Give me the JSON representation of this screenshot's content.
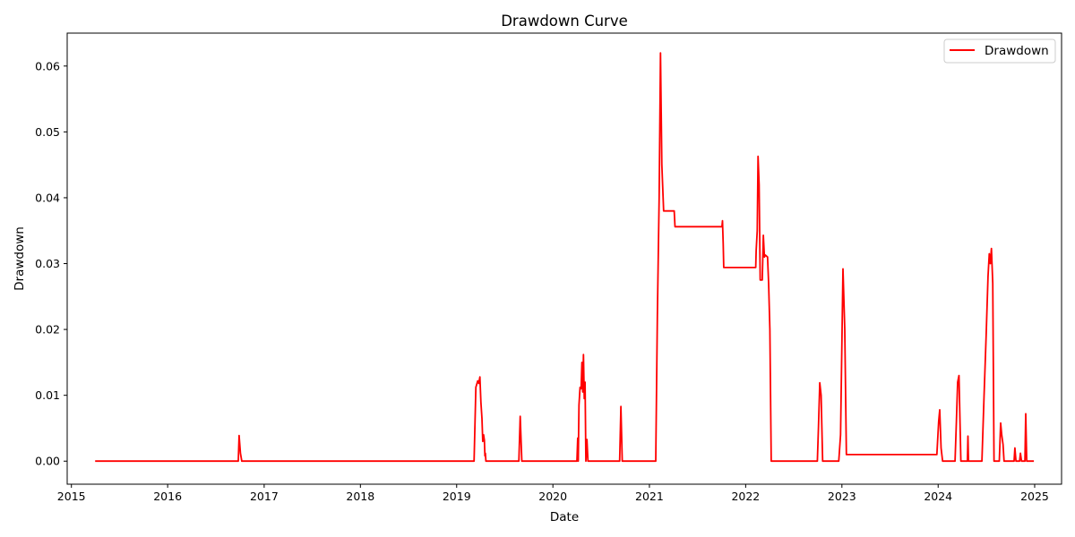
{
  "chart_data": {
    "type": "line",
    "title": "Drawdown Curve",
    "xlabel": "Date",
    "ylabel": "Drawdown",
    "xlim": [
      "2014-12-16",
      "2025-04-13"
    ],
    "ylim": [
      -0.0035,
      0.065
    ],
    "x_ticks": [
      "2015",
      "2016",
      "2017",
      "2018",
      "2019",
      "2020",
      "2021",
      "2022",
      "2023",
      "2024",
      "2025"
    ],
    "y_ticks": [
      "0.00",
      "0.01",
      "0.02",
      "0.03",
      "0.04",
      "0.05",
      "0.06"
    ],
    "grid": false,
    "legend_position": "top-right",
    "series": [
      {
        "name": "Drawdown",
        "color": "#ff0000",
        "points": [
          [
            "2015-04-01",
            0.0
          ],
          [
            "2016-09-25",
            0.0
          ],
          [
            "2016-09-28",
            0.0039
          ],
          [
            "2016-10-03",
            0.0012
          ],
          [
            "2016-10-08",
            0.0
          ],
          [
            "2019-03-08",
            0.0
          ],
          [
            "2019-03-15",
            0.0112
          ],
          [
            "2019-03-22",
            0.0122
          ],
          [
            "2019-03-26",
            0.0118
          ],
          [
            "2019-03-30",
            0.0128
          ],
          [
            "2019-04-03",
            0.009
          ],
          [
            "2019-04-07",
            0.0065
          ],
          [
            "2019-04-10",
            0.003
          ],
          [
            "2019-04-13",
            0.004
          ],
          [
            "2019-04-16",
            0.0032
          ],
          [
            "2019-04-18",
            0.0008
          ],
          [
            "2019-04-20",
            0.0012
          ],
          [
            "2019-04-22",
            0.0
          ],
          [
            "2019-08-25",
            0.0
          ],
          [
            "2019-08-30",
            0.0068
          ],
          [
            "2019-09-05",
            0.0
          ],
          [
            "2020-04-01",
            0.0
          ],
          [
            "2020-04-04",
            0.0035
          ],
          [
            "2020-04-06",
            0.0
          ],
          [
            "2020-04-09",
            0.0085
          ],
          [
            "2020-04-13",
            0.0112
          ],
          [
            "2020-04-17",
            0.011
          ],
          [
            "2020-04-20",
            0.015
          ],
          [
            "2020-04-23",
            0.0105
          ],
          [
            "2020-04-26",
            0.0162
          ],
          [
            "2020-04-29",
            0.0095
          ],
          [
            "2020-05-02",
            0.012
          ],
          [
            "2020-05-05",
            0.0
          ],
          [
            "2020-05-09",
            0.0033
          ],
          [
            "2020-05-13",
            0.0
          ],
          [
            "2020-09-10",
            0.0
          ],
          [
            "2020-09-15",
            0.0083
          ],
          [
            "2020-09-20",
            0.0
          ],
          [
            "2021-01-25",
            0.0
          ],
          [
            "2021-01-31",
            0.022
          ],
          [
            "2021-02-07",
            0.04
          ],
          [
            "2021-02-12",
            0.062
          ],
          [
            "2021-02-17",
            0.045
          ],
          [
            "2021-02-24",
            0.038
          ],
          [
            "2021-04-05",
            0.038
          ],
          [
            "2021-04-08",
            0.0356
          ],
          [
            "2021-10-03",
            0.0356
          ],
          [
            "2021-10-05",
            0.0365
          ],
          [
            "2021-10-08",
            0.033
          ],
          [
            "2021-10-10",
            0.0294
          ],
          [
            "2022-02-08",
            0.0294
          ],
          [
            "2022-02-10",
            0.032
          ],
          [
            "2022-02-14",
            0.035
          ],
          [
            "2022-02-17",
            0.0463
          ],
          [
            "2022-02-21",
            0.042
          ],
          [
            "2022-02-25",
            0.0275
          ],
          [
            "2022-03-05",
            0.0275
          ],
          [
            "2022-03-09",
            0.0343
          ],
          [
            "2022-03-13",
            0.031
          ],
          [
            "2022-03-17",
            0.0313
          ],
          [
            "2022-03-25",
            0.031
          ],
          [
            "2022-03-29",
            0.027
          ],
          [
            "2022-04-03",
            0.02
          ],
          [
            "2022-04-08",
            0.0
          ],
          [
            "2022-09-30",
            0.0
          ],
          [
            "2022-10-04",
            0.005
          ],
          [
            "2022-10-09",
            0.0119
          ],
          [
            "2022-10-14",
            0.01
          ],
          [
            "2022-10-20",
            0.0
          ],
          [
            "2022-12-20",
            0.0
          ],
          [
            "2022-12-27",
            0.004
          ],
          [
            "2023-01-05",
            0.0292
          ],
          [
            "2023-01-12",
            0.02
          ],
          [
            "2023-01-18",
            0.001
          ],
          [
            "2023-12-27",
            0.001
          ],
          [
            "2024-01-03",
            0.006
          ],
          [
            "2024-01-07",
            0.0078
          ],
          [
            "2024-01-12",
            0.002
          ],
          [
            "2024-01-18",
            0.0
          ],
          [
            "2024-03-05",
            0.0
          ],
          [
            "2024-03-10",
            0.006
          ],
          [
            "2024-03-15",
            0.012
          ],
          [
            "2024-03-20",
            0.013
          ],
          [
            "2024-03-27",
            0.0
          ],
          [
            "2024-04-21",
            0.0
          ],
          [
            "2024-04-23",
            0.0038
          ],
          [
            "2024-04-25",
            0.0
          ],
          [
            "2024-06-15",
            0.0
          ],
          [
            "2024-06-23",
            0.01
          ],
          [
            "2024-07-01",
            0.019
          ],
          [
            "2024-07-08",
            0.028
          ],
          [
            "2024-07-13",
            0.0315
          ],
          [
            "2024-07-17",
            0.03
          ],
          [
            "2024-07-21",
            0.0323
          ],
          [
            "2024-07-26",
            0.027
          ],
          [
            "2024-07-31",
            0.0
          ],
          [
            "2024-08-20",
            0.0
          ],
          [
            "2024-08-25",
            0.0058
          ],
          [
            "2024-08-29",
            0.004
          ],
          [
            "2024-09-03",
            0.0025
          ],
          [
            "2024-09-07",
            0.0
          ],
          [
            "2024-10-15",
            0.0
          ],
          [
            "2024-10-18",
            0.002
          ],
          [
            "2024-10-22",
            0.0
          ],
          [
            "2024-11-05",
            0.0
          ],
          [
            "2024-11-08",
            0.0012
          ],
          [
            "2024-11-12",
            0.0
          ],
          [
            "2024-11-25",
            0.0
          ],
          [
            "2024-11-28",
            0.0072
          ],
          [
            "2024-12-02",
            0.0
          ],
          [
            "2024-12-29",
            0.0
          ]
        ]
      }
    ]
  }
}
